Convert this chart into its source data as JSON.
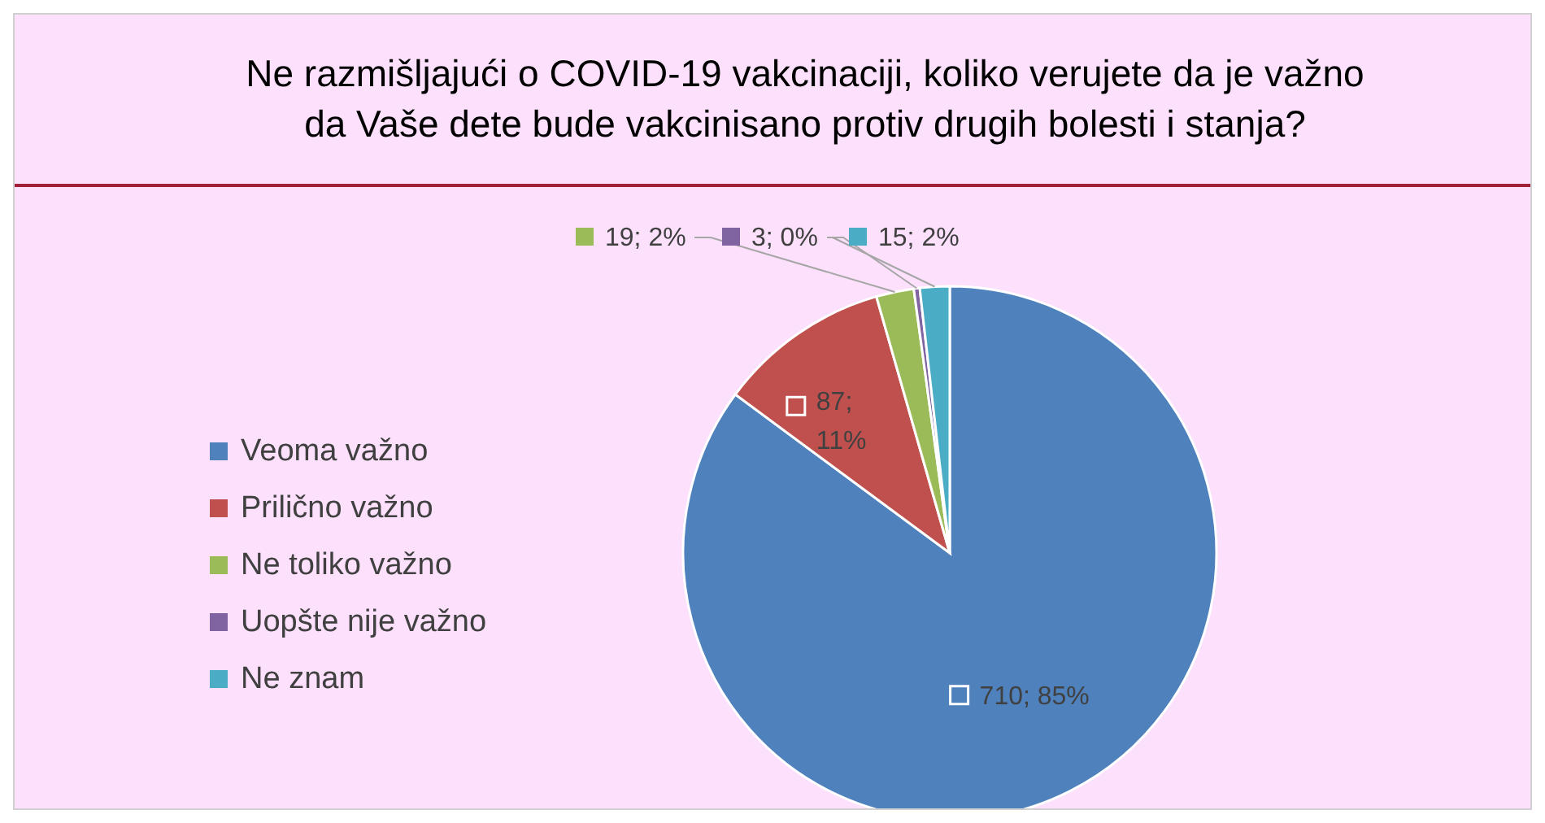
{
  "chart_data": {
    "type": "pie",
    "title": "Ne razmišljajući o COVID-19 vakcinaciji, koliko verujete da je važno da Vaše dete bude vakcinisano protiv drugih bolesti i stanja?",
    "categories": [
      "Veoma važno",
      "Prilično važno",
      "Ne toliko važno",
      "Uopšte nije važno",
      "Ne znam"
    ],
    "values": [
      710,
      87,
      19,
      3,
      15
    ],
    "colors": [
      "#4f81bd",
      "#c0504d",
      "#9bbb59",
      "#8064a2",
      "#4bacc6"
    ],
    "value_labels": [
      "710; 85%",
      "87; 11%",
      "19; 2%",
      "3; 0%",
      "15; 2%"
    ],
    "legend": "left"
  }
}
